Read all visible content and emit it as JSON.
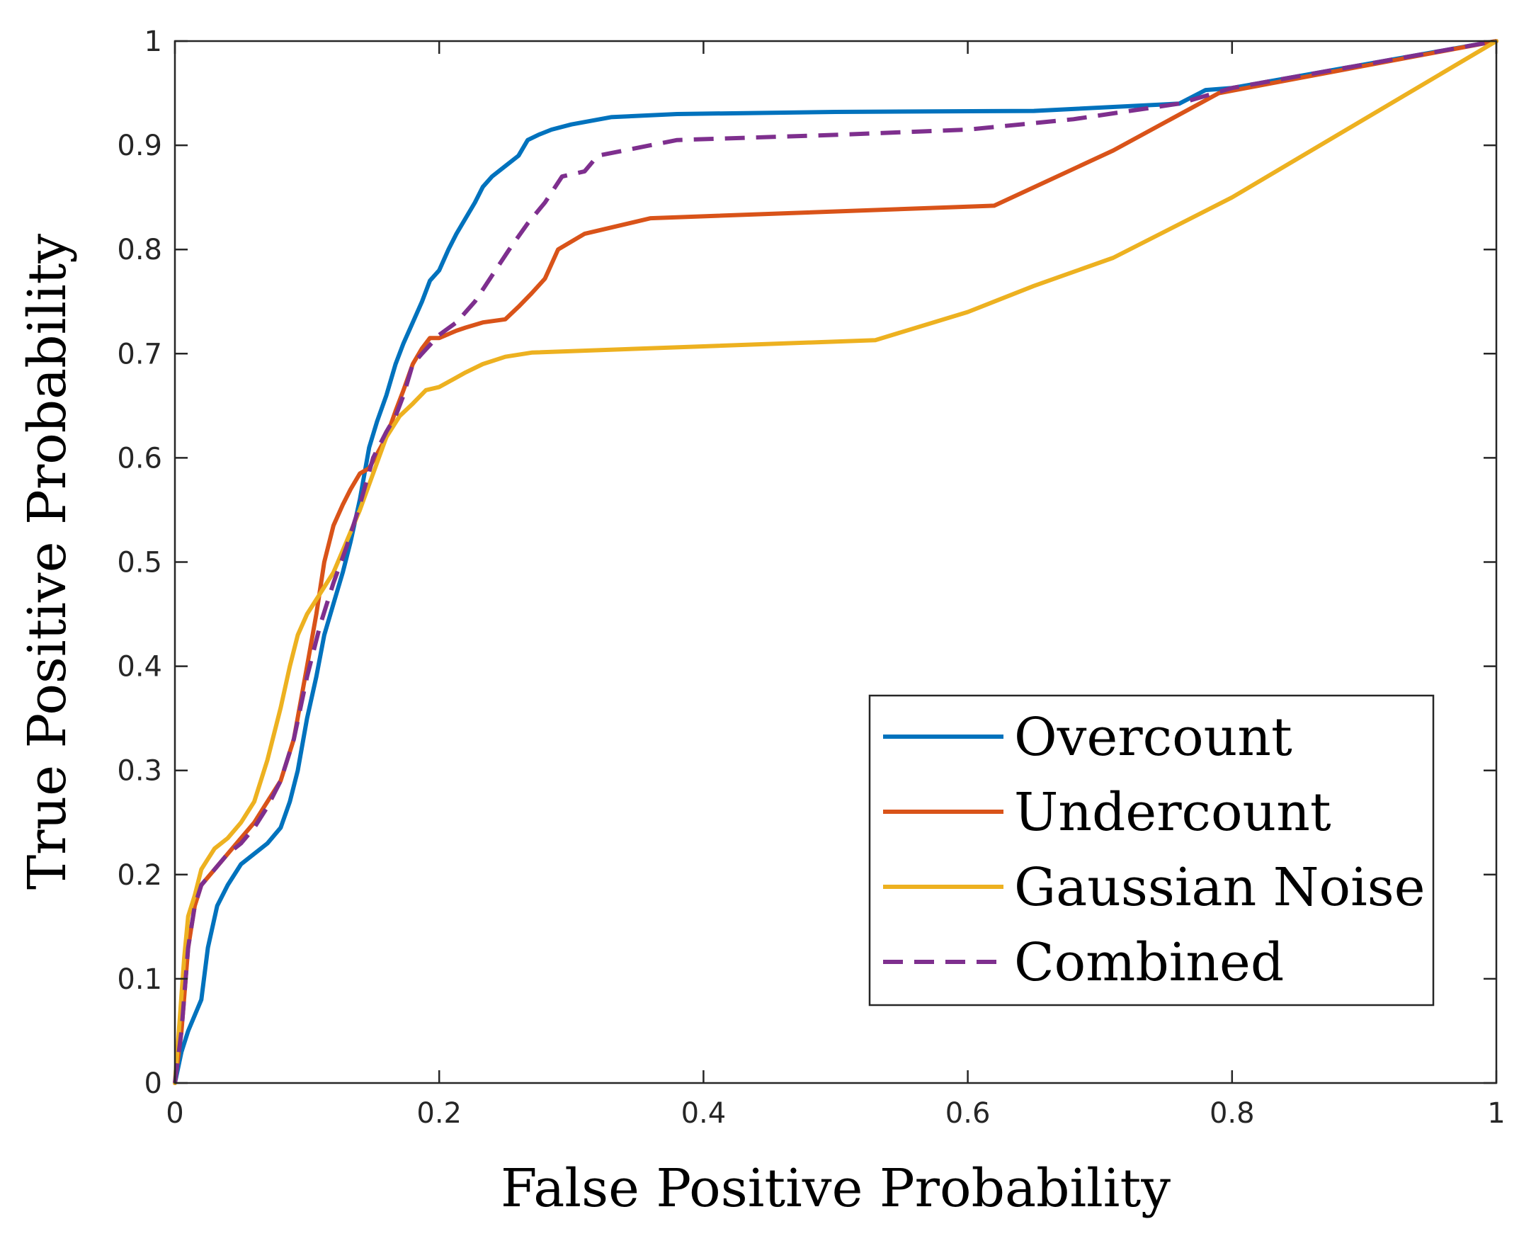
{
  "chart_data": {
    "type": "line",
    "title": "",
    "xlabel": "False Positive Probability",
    "ylabel": "True Positive Probability",
    "xlim": [
      0,
      1
    ],
    "ylim": [
      0,
      1
    ],
    "xticks": [
      0,
      0.2,
      0.4,
      0.6,
      0.8,
      1
    ],
    "xtick_labels": [
      "0",
      "0.2",
      "0.4",
      "0.6",
      "0.8",
      "1"
    ],
    "yticks": [
      0,
      0.1,
      0.2,
      0.3,
      0.4,
      0.5,
      0.6,
      0.7,
      0.8,
      0.9,
      1
    ],
    "ytick_labels": [
      "0",
      "0.1",
      "0.2",
      "0.3",
      "0.4",
      "0.5",
      "0.6",
      "0.7",
      "0.8",
      "0.9",
      "1"
    ],
    "grid": false,
    "legend_position": "bottom-right",
    "series": [
      {
        "name": "Overcount",
        "color": "#0072BD",
        "dashed": false,
        "points": [
          [
            0,
            0
          ],
          [
            0.005,
            0.03
          ],
          [
            0.01,
            0.05
          ],
          [
            0.02,
            0.08
          ],
          [
            0.025,
            0.13
          ],
          [
            0.032,
            0.17
          ],
          [
            0.04,
            0.19
          ],
          [
            0.05,
            0.21
          ],
          [
            0.06,
            0.22
          ],
          [
            0.07,
            0.23
          ],
          [
            0.08,
            0.245
          ],
          [
            0.087,
            0.27
          ],
          [
            0.093,
            0.3
          ],
          [
            0.1,
            0.35
          ],
          [
            0.107,
            0.39
          ],
          [
            0.113,
            0.43
          ],
          [
            0.12,
            0.46
          ],
          [
            0.127,
            0.49
          ],
          [
            0.133,
            0.52
          ],
          [
            0.14,
            0.56
          ],
          [
            0.147,
            0.61
          ],
          [
            0.153,
            0.635
          ],
          [
            0.16,
            0.66
          ],
          [
            0.167,
            0.69
          ],
          [
            0.173,
            0.71
          ],
          [
            0.18,
            0.73
          ],
          [
            0.187,
            0.75
          ],
          [
            0.193,
            0.77
          ],
          [
            0.2,
            0.78
          ],
          [
            0.207,
            0.8
          ],
          [
            0.213,
            0.815
          ],
          [
            0.22,
            0.83
          ],
          [
            0.227,
            0.845
          ],
          [
            0.233,
            0.86
          ],
          [
            0.24,
            0.87
          ],
          [
            0.25,
            0.88
          ],
          [
            0.26,
            0.89
          ],
          [
            0.267,
            0.905
          ],
          [
            0.275,
            0.91
          ],
          [
            0.285,
            0.915
          ],
          [
            0.3,
            0.92
          ],
          [
            0.33,
            0.927
          ],
          [
            0.38,
            0.93
          ],
          [
            0.5,
            0.932
          ],
          [
            0.65,
            0.933
          ],
          [
            0.76,
            0.94
          ],
          [
            0.78,
            0.953
          ],
          [
            0.8,
            0.955
          ],
          [
            1,
            1
          ]
        ]
      },
      {
        "name": "Undercount",
        "color": "#D95319",
        "dashed": false,
        "points": [
          [
            0,
            0
          ],
          [
            0.005,
            0.05
          ],
          [
            0.01,
            0.13
          ],
          [
            0.015,
            0.17
          ],
          [
            0.02,
            0.19
          ],
          [
            0.03,
            0.205
          ],
          [
            0.04,
            0.22
          ],
          [
            0.05,
            0.235
          ],
          [
            0.06,
            0.25
          ],
          [
            0.07,
            0.27
          ],
          [
            0.08,
            0.29
          ],
          [
            0.09,
            0.33
          ],
          [
            0.1,
            0.4
          ],
          [
            0.107,
            0.45
          ],
          [
            0.113,
            0.5
          ],
          [
            0.12,
            0.535
          ],
          [
            0.127,
            0.555
          ],
          [
            0.133,
            0.57
          ],
          [
            0.14,
            0.585
          ],
          [
            0.147,
            0.59
          ],
          [
            0.16,
            0.62
          ],
          [
            0.167,
            0.645
          ],
          [
            0.173,
            0.665
          ],
          [
            0.18,
            0.69
          ],
          [
            0.187,
            0.705
          ],
          [
            0.193,
            0.715
          ],
          [
            0.2,
            0.715
          ],
          [
            0.213,
            0.722
          ],
          [
            0.22,
            0.725
          ],
          [
            0.233,
            0.73
          ],
          [
            0.25,
            0.733
          ],
          [
            0.26,
            0.745
          ],
          [
            0.27,
            0.758
          ],
          [
            0.28,
            0.772
          ],
          [
            0.29,
            0.8
          ],
          [
            0.31,
            0.815
          ],
          [
            0.36,
            0.83
          ],
          [
            0.62,
            0.842
          ],
          [
            0.71,
            0.895
          ],
          [
            0.79,
            0.95
          ],
          [
            1,
            1
          ]
        ]
      },
      {
        "name": "Gaussian Noise",
        "color": "#EDB120",
        "dashed": false,
        "points": [
          [
            0,
            0
          ],
          [
            0.003,
            0.05
          ],
          [
            0.007,
            0.12
          ],
          [
            0.01,
            0.16
          ],
          [
            0.015,
            0.18
          ],
          [
            0.02,
            0.205
          ],
          [
            0.025,
            0.215
          ],
          [
            0.03,
            0.225
          ],
          [
            0.04,
            0.235
          ],
          [
            0.05,
            0.25
          ],
          [
            0.06,
            0.27
          ],
          [
            0.07,
            0.31
          ],
          [
            0.08,
            0.36
          ],
          [
            0.087,
            0.4
          ],
          [
            0.093,
            0.43
          ],
          [
            0.1,
            0.45
          ],
          [
            0.11,
            0.47
          ],
          [
            0.12,
            0.49
          ],
          [
            0.13,
            0.52
          ],
          [
            0.14,
            0.55
          ],
          [
            0.15,
            0.585
          ],
          [
            0.16,
            0.62
          ],
          [
            0.17,
            0.64
          ],
          [
            0.18,
            0.652
          ],
          [
            0.19,
            0.665
          ],
          [
            0.2,
            0.668
          ],
          [
            0.21,
            0.675
          ],
          [
            0.22,
            0.682
          ],
          [
            0.233,
            0.69
          ],
          [
            0.25,
            0.697
          ],
          [
            0.27,
            0.701
          ],
          [
            0.4,
            0.707
          ],
          [
            0.53,
            0.713
          ],
          [
            0.6,
            0.74
          ],
          [
            0.65,
            0.765
          ],
          [
            0.71,
            0.792
          ],
          [
            0.8,
            0.85
          ],
          [
            1,
            1
          ]
        ]
      },
      {
        "name": "Combined",
        "color": "#7E2F8E",
        "dashed": true,
        "points": [
          [
            0,
            0
          ],
          [
            0.005,
            0.05
          ],
          [
            0.01,
            0.13
          ],
          [
            0.015,
            0.17
          ],
          [
            0.02,
            0.19
          ],
          [
            0.03,
            0.205
          ],
          [
            0.04,
            0.22
          ],
          [
            0.05,
            0.23
          ],
          [
            0.06,
            0.245
          ],
          [
            0.07,
            0.265
          ],
          [
            0.08,
            0.29
          ],
          [
            0.09,
            0.33
          ],
          [
            0.1,
            0.39
          ],
          [
            0.11,
            0.44
          ],
          [
            0.12,
            0.48
          ],
          [
            0.13,
            0.515
          ],
          [
            0.14,
            0.555
          ],
          [
            0.15,
            0.6
          ],
          [
            0.16,
            0.625
          ],
          [
            0.167,
            0.64
          ],
          [
            0.173,
            0.66
          ],
          [
            0.18,
            0.69
          ],
          [
            0.187,
            0.7
          ],
          [
            0.2,
            0.718
          ],
          [
            0.213,
            0.73
          ],
          [
            0.227,
            0.75
          ],
          [
            0.24,
            0.775
          ],
          [
            0.253,
            0.8
          ],
          [
            0.267,
            0.825
          ],
          [
            0.28,
            0.845
          ],
          [
            0.293,
            0.87
          ],
          [
            0.31,
            0.875
          ],
          [
            0.32,
            0.89
          ],
          [
            0.38,
            0.905
          ],
          [
            0.5,
            0.91
          ],
          [
            0.6,
            0.915
          ],
          [
            0.68,
            0.925
          ],
          [
            0.76,
            0.94
          ],
          [
            0.8,
            0.955
          ],
          [
            1,
            1
          ]
        ]
      }
    ]
  }
}
